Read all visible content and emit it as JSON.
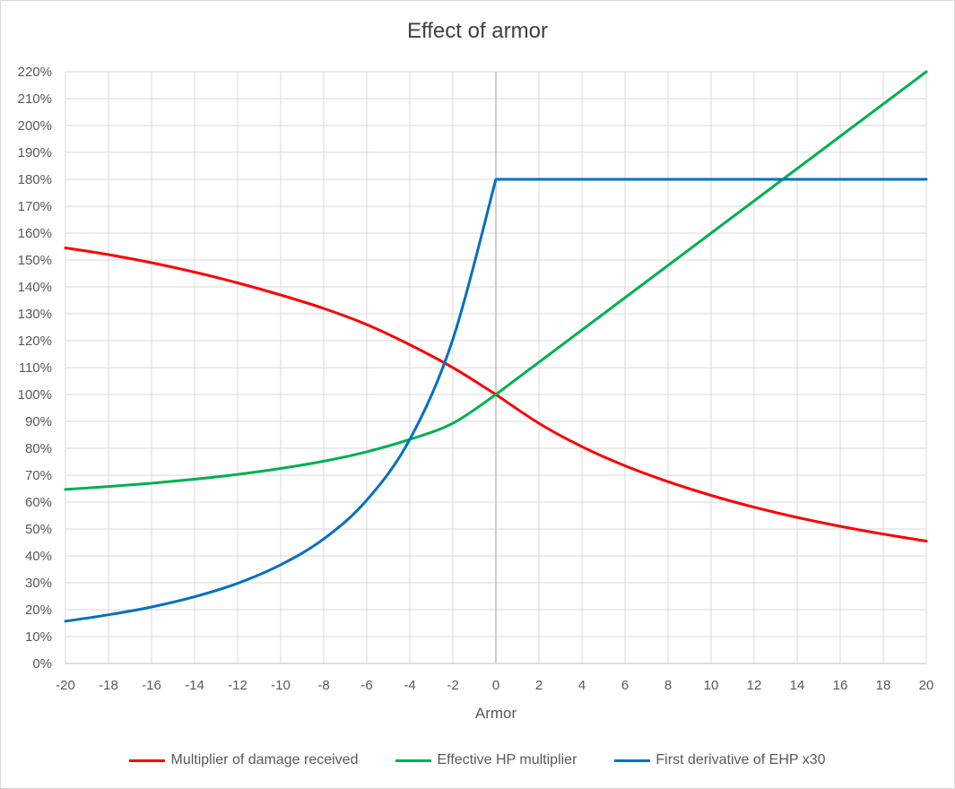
{
  "chart_data": {
    "type": "line",
    "title": "Effect of armor",
    "xlabel": "Armor",
    "ylabel": "",
    "xlim": [
      -20,
      20
    ],
    "ylim": [
      0,
      2.2
    ],
    "x_ticks": [
      -20,
      -18,
      -16,
      -14,
      -12,
      -10,
      -8,
      -6,
      -4,
      -2,
      0,
      2,
      4,
      6,
      8,
      10,
      12,
      14,
      16,
      18,
      20
    ],
    "x_tick_labels": [
      "-20",
      "-18",
      "-16",
      "-14",
      "-12",
      "-10",
      "-8",
      "-6",
      "-4",
      "-2",
      "0",
      "2",
      "4",
      "6",
      "8",
      "10",
      "12",
      "14",
      "16",
      "18",
      "20"
    ],
    "y_ticks": [
      0,
      0.1,
      0.2,
      0.3,
      0.4,
      0.5,
      0.6,
      0.7,
      0.8,
      0.9,
      1.0,
      1.1,
      1.2,
      1.3,
      1.4,
      1.5,
      1.6,
      1.7,
      1.8,
      1.9,
      2.0,
      2.1,
      2.2
    ],
    "y_tick_labels": [
      "0%",
      "10%",
      "20%",
      "30%",
      "40%",
      "50%",
      "60%",
      "70%",
      "80%",
      "90%",
      "100%",
      "110%",
      "120%",
      "130%",
      "140%",
      "150%",
      "160%",
      "170%",
      "180%",
      "190%",
      "200%",
      "210%",
      "220%"
    ],
    "grid": true,
    "legend_position": "bottom",
    "x": [
      -20,
      -18,
      -16,
      -14,
      -12,
      -10,
      -8,
      -6,
      -4,
      -2,
      0,
      2,
      4,
      6,
      8,
      10,
      12,
      14,
      16,
      18,
      20
    ],
    "series": [
      {
        "name": "Multiplier of damage received",
        "color": "#ff0000",
        "values": [
          1.545,
          1.52,
          1.49,
          1.455,
          1.415,
          1.37,
          1.32,
          1.26,
          1.185,
          1.1,
          1.0,
          0.893,
          0.806,
          0.735,
          0.676,
          0.625,
          0.581,
          0.543,
          0.51,
          0.481,
          0.455
        ]
      },
      {
        "name": "Effective HP multiplier",
        "color": "#00b050",
        "values": [
          0.647,
          0.658,
          0.67,
          0.685,
          0.703,
          0.725,
          0.752,
          0.787,
          0.833,
          0.893,
          1.0,
          1.12,
          1.24,
          1.36,
          1.48,
          1.6,
          1.72,
          1.84,
          1.96,
          2.08,
          2.2
        ]
      },
      {
        "name": "First derivative of EHP x30",
        "color": "#0070c0",
        "values": [
          0.157,
          0.181,
          0.21,
          0.248,
          0.298,
          0.367,
          0.463,
          0.607,
          0.833,
          1.205,
          1.8,
          1.8,
          1.8,
          1.8,
          1.8,
          1.8,
          1.8,
          1.8,
          1.8,
          1.8,
          1.8
        ]
      }
    ]
  }
}
